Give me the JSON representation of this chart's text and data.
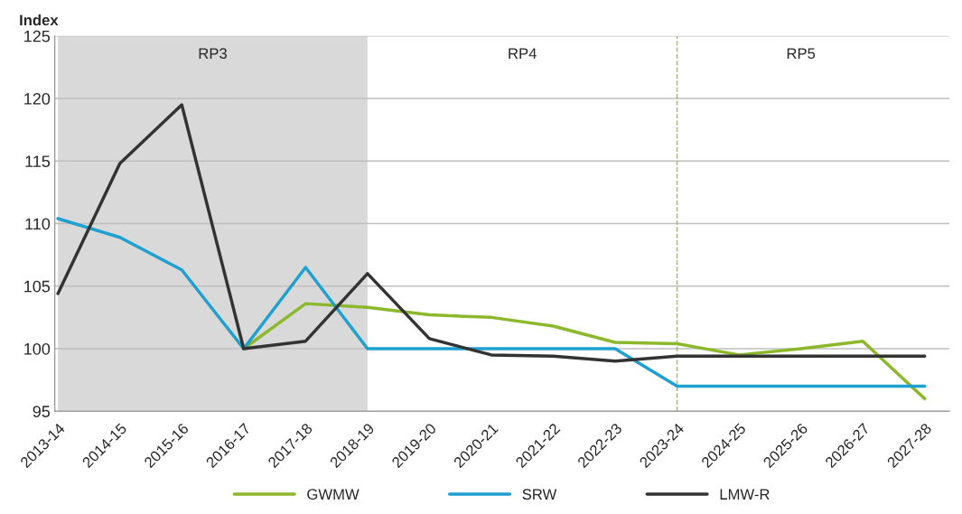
{
  "chart_data": {
    "type": "line",
    "ylabel": "Index",
    "categories": [
      "2013-14",
      "2014-15",
      "2015-16",
      "2016-17",
      "2017-18",
      "2018-19",
      "2019-20",
      "2020-21",
      "2021-22",
      "2022-23",
      "2023-24",
      "2024-25",
      "2025-26",
      "2026-27",
      "2027-28"
    ],
    "series": [
      {
        "name": "GWMW",
        "color": "#8cb82b",
        "values": [
          null,
          null,
          null,
          100,
          103.6,
          103.3,
          102.7,
          102.5,
          101.8,
          100.5,
          100.4,
          99.5,
          100.0,
          100.6,
          96.0
        ]
      },
      {
        "name": "SRW",
        "color": "#1ea0d0",
        "values": [
          110.4,
          108.9,
          106.3,
          100,
          106.5,
          100,
          100,
          100,
          100,
          100,
          97,
          97,
          97,
          97,
          97
        ]
      },
      {
        "name": "LMW-R",
        "color": "#333333",
        "values": [
          104.4,
          114.8,
          119.5,
          100,
          100.6,
          106,
          100.8,
          99.5,
          99.4,
          99,
          99.4,
          99.4,
          99.4,
          99.4,
          99.4
        ]
      }
    ],
    "ylim": [
      95,
      125
    ],
    "yticks": [
      95,
      100,
      105,
      110,
      115,
      120,
      125
    ],
    "bands": [
      {
        "axis": "x",
        "from": "2013-14",
        "to": "2018-19",
        "label": "RP3",
        "color": "#d9d9d9"
      }
    ],
    "annotations": [
      "RP4",
      "RP5"
    ],
    "ref_lines": [
      {
        "axis": "x",
        "value": "2023-24",
        "label": null,
        "color": "#9bbb59",
        "line_style": "dashed"
      }
    ],
    "grid": "y",
    "legend": "bottom",
    "line_style": "solid",
    "marker": "none"
  }
}
